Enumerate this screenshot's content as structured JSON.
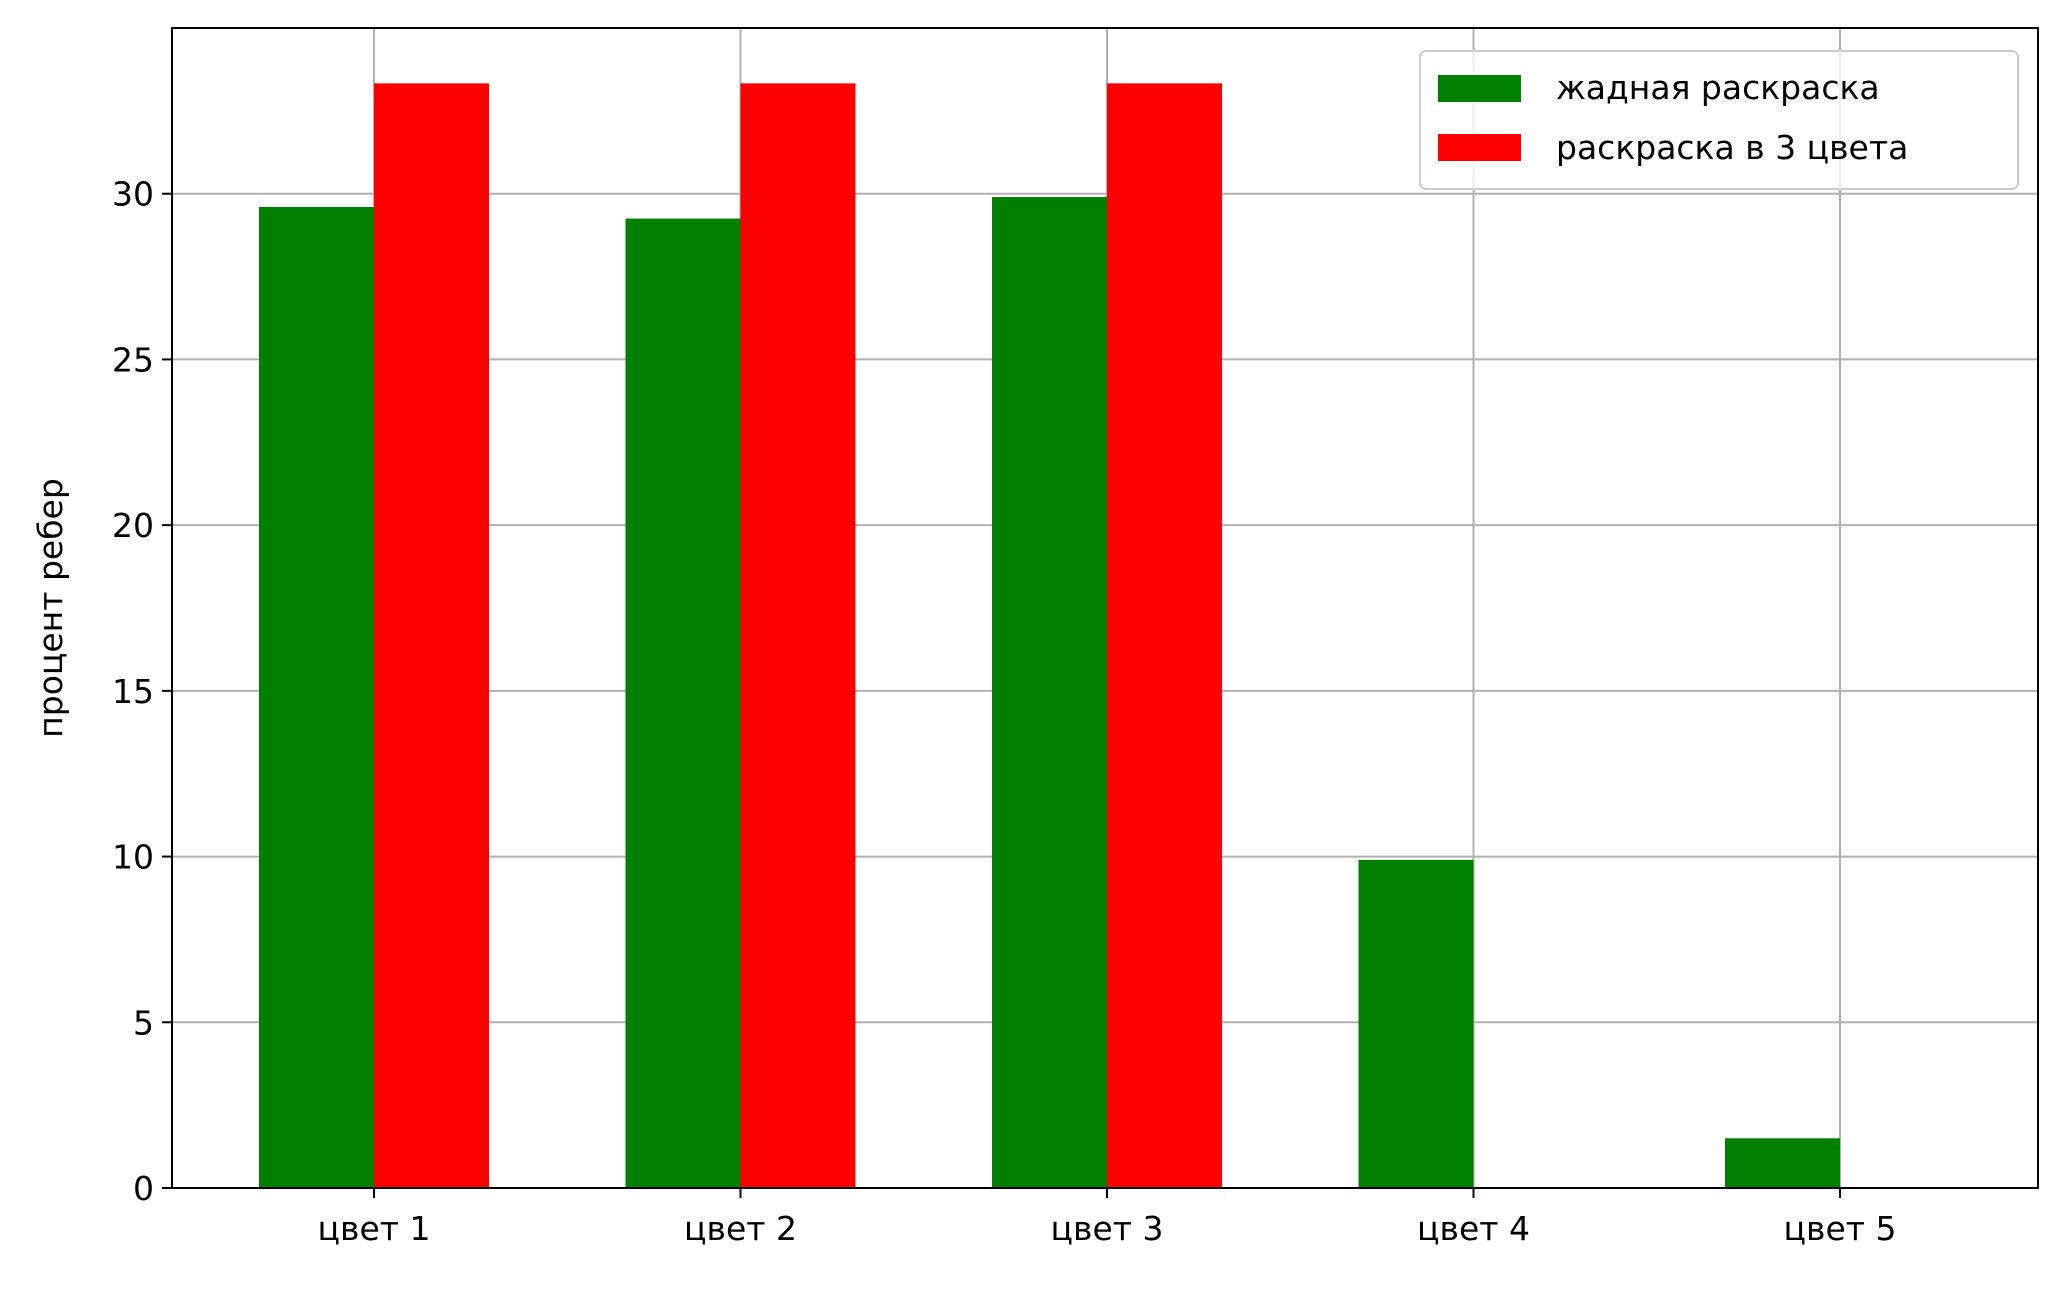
{
  "chart_data": {
    "type": "bar",
    "title": "",
    "xlabel": "",
    "ylabel": "процент ребер",
    "categories": [
      "цвет 1",
      "цвет 2",
      "цвет 3",
      "цвет 4",
      "цвет 5"
    ],
    "series": [
      {
        "name": "жадная раскраска",
        "color": "#008000",
        "values": [
          29.6,
          29.25,
          29.9,
          9.9,
          1.5
        ]
      },
      {
        "name": "раскраска в 3 цвета",
        "color": "#ff0000",
        "values": [
          33.33,
          33.33,
          33.33,
          0,
          0
        ]
      }
    ],
    "ylim": [
      0,
      35
    ],
    "yticks": [
      0,
      5,
      10,
      15,
      20,
      25,
      30
    ],
    "grid": true,
    "legend_position": "top-right"
  }
}
